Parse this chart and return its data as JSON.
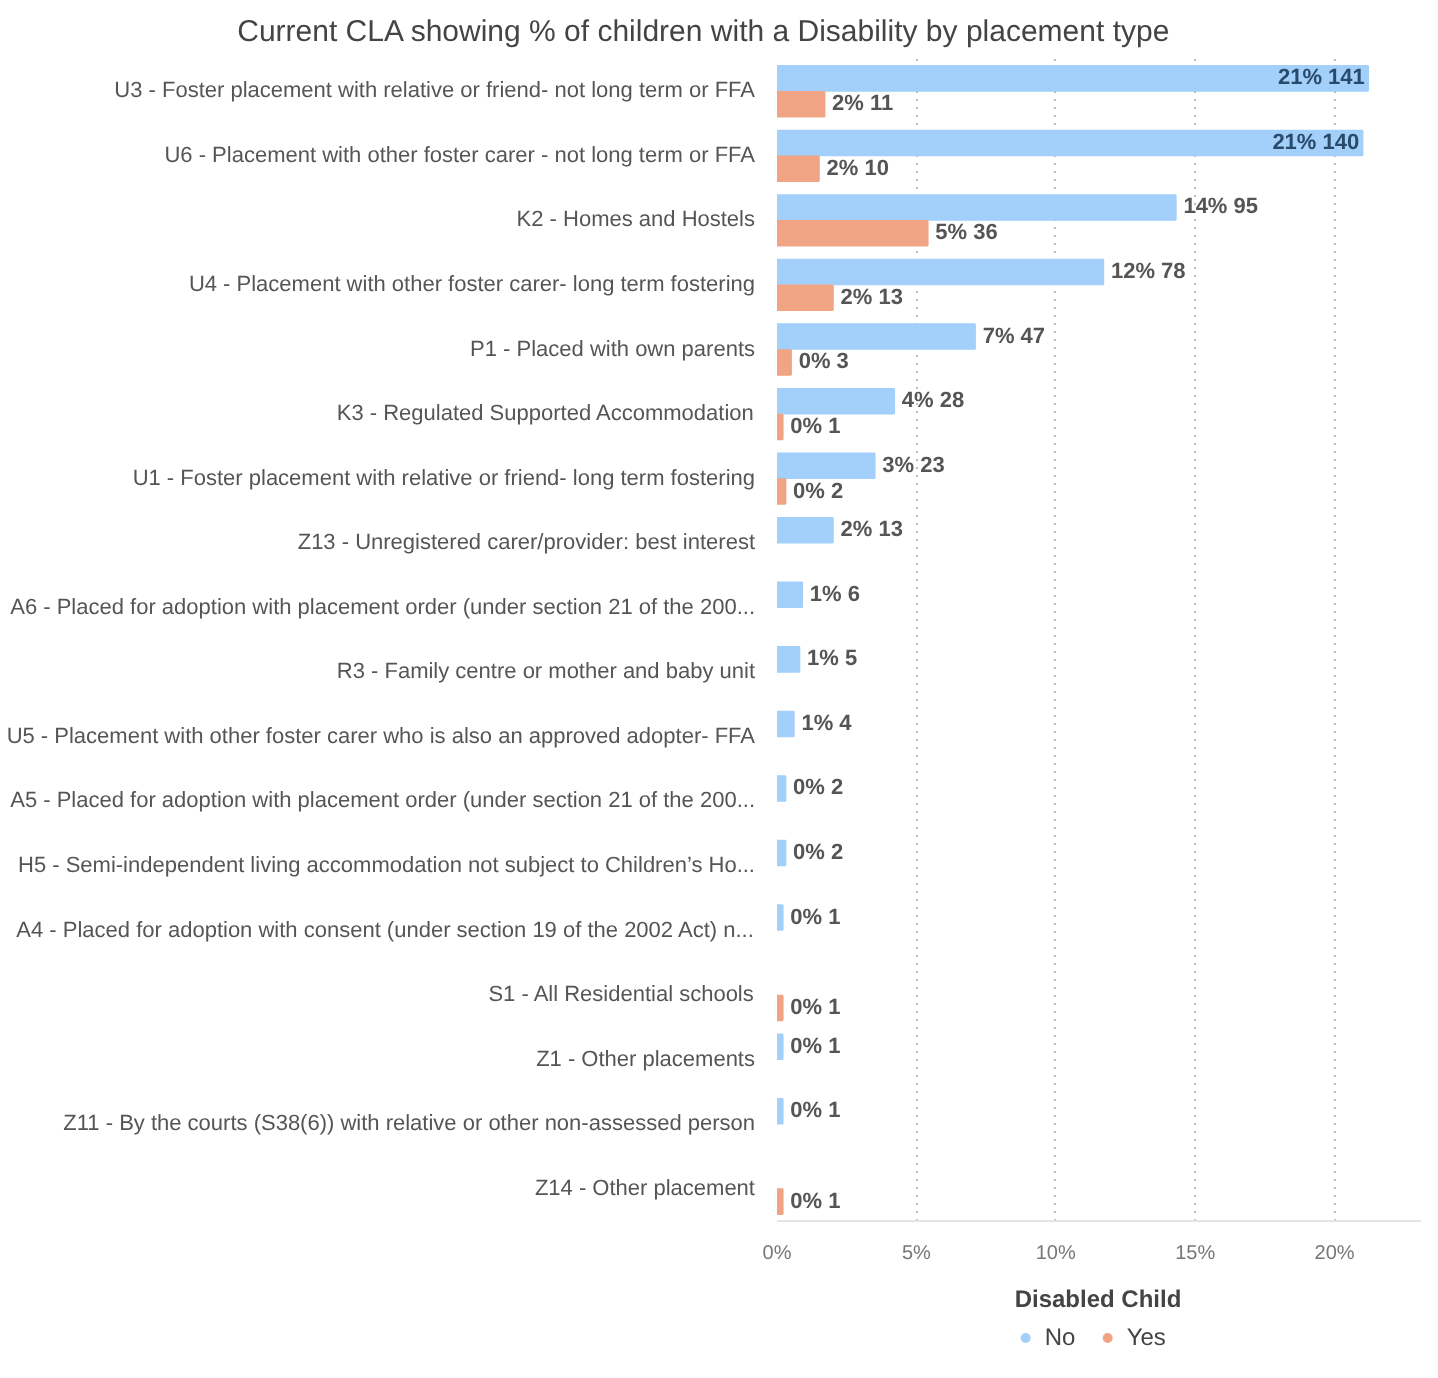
{
  "chart_data": {
    "type": "bar",
    "orientation": "horizontal",
    "title": "Current CLA showing % of children with a Disability by placement type",
    "categories": [
      "U3 - Foster placement with relative or friend- not long term or FFA",
      "U6 - Placement with other foster carer - not long term or FFA",
      "K2 - Homes and Hostels",
      "U4 - Placement with other foster carer- long term fostering",
      "P1 - Placed with own parents",
      "K3 - Regulated Supported Accommodation",
      "U1 - Foster placement with relative or friend- long term fostering",
      "Z13 - Unregistered carer/provider: best interest",
      "A6 - Placed for adoption with placement order (under section 21 of the 200...",
      "R3 - Family centre or mother and baby unit",
      "U5 - Placement with other foster carer who is also an approved adopter- FFA",
      "A5 - Placed for adoption with placement order (under section 21 of the 200...",
      "H5 - Semi-independent living accommodation not subject to Children’s Ho...",
      "A4 - Placed for adoption with consent (under section 19 of the 2002 Act) n...",
      "S1 - All Residential schools",
      "Z1 - Other placements",
      "Z11 - By the courts (S38(6)) with relative or other non-assessed person",
      "Z14 - Other placement"
    ],
    "series": [
      {
        "name": "No",
        "color": "#a3d0fa",
        "values": [
          21.2,
          21.0,
          14.3,
          11.7,
          7.1,
          4.2,
          3.5,
          2.0,
          0.9,
          0.8,
          0.6,
          0.3,
          0.3,
          0.2,
          null,
          0.2,
          0.2,
          null
        ],
        "value_labels": [
          "21% 141",
          "21% 140",
          "14% 95",
          "12% 78",
          "7% 47",
          "4% 28",
          "3% 23",
          "2% 13",
          "1% 6",
          "1% 5",
          "1% 4",
          "0% 2",
          "0% 2",
          "0% 1",
          null,
          "0% 1",
          "0% 1",
          null
        ]
      },
      {
        "name": "Yes",
        "color": "#f0a484",
        "values": [
          1.7,
          1.5,
          5.4,
          2.0,
          0.5,
          0.2,
          0.3,
          null,
          null,
          null,
          null,
          null,
          null,
          null,
          0.2,
          null,
          null,
          0.2
        ],
        "value_labels": [
          "2% 11",
          "2% 10",
          "5% 36",
          "2% 13",
          "0% 3",
          "0% 1",
          "0% 2",
          null,
          null,
          null,
          null,
          null,
          null,
          null,
          "0% 1",
          null,
          null,
          "0% 1"
        ]
      }
    ],
    "xlim": [
      0,
      23.1
    ],
    "xticks": [
      {
        "value": 0,
        "label": "0%"
      },
      {
        "value": 5,
        "label": "5%"
      },
      {
        "value": 10,
        "label": "10%"
      },
      {
        "value": 15,
        "label": "15%"
      },
      {
        "value": 20,
        "label": "20%"
      }
    ],
    "grid": "x",
    "legend": "bottom",
    "legend_title": "Disabled Child"
  }
}
